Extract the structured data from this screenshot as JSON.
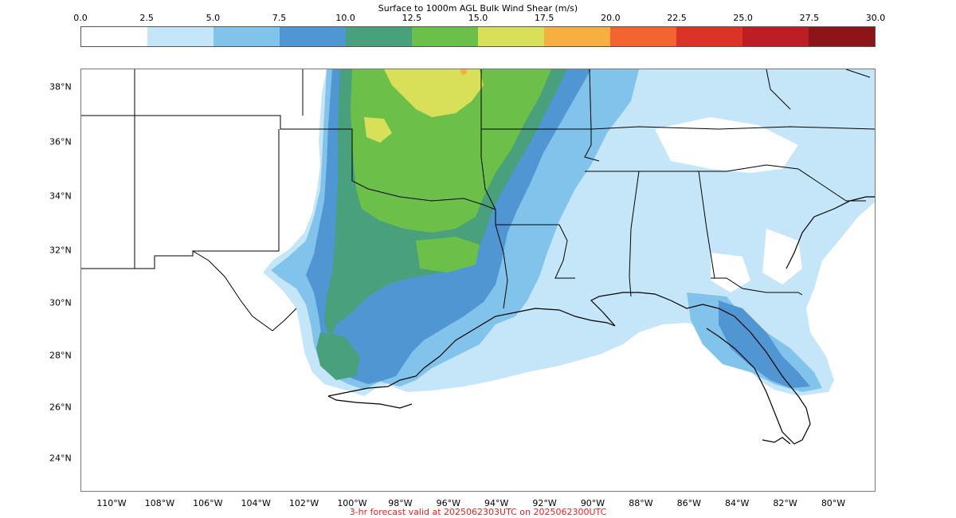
{
  "title": "Surface to 1000m AGL Bulk Wind Shear (m/s)",
  "colorbar": {
    "ticks": [
      "0.0",
      "2.5",
      "5.0",
      "7.5",
      "10.0",
      "12.5",
      "15.0",
      "17.5",
      "20.0",
      "22.5",
      "25.0",
      "27.5",
      "30.0"
    ],
    "colors": [
      "#ffffff",
      "#c4e6f8",
      "#82c3ec",
      "#5096d3",
      "#48a07c",
      "#6cbf48",
      "#d8e05a",
      "#f6b042",
      "#f26530",
      "#dc3328",
      "#bd1e25",
      "#8c1519"
    ]
  },
  "lat_labels": [
    "38°N",
    "36°N",
    "34°N",
    "32°N",
    "30°N",
    "28°N",
    "26°N",
    "24°N"
  ],
  "lon_labels": [
    "110°W",
    "108°W",
    "106°W",
    "104°W",
    "102°W",
    "100°W",
    "98°W",
    "96°W",
    "94°W",
    "92°W",
    "90°W",
    "88°W",
    "86°W",
    "84°W",
    "82°W",
    "80°W"
  ],
  "footer": {
    "text": "3-hr forecast valid at 2025062303UTC on 2025062300UTC",
    "color": "#e8221c"
  }
}
